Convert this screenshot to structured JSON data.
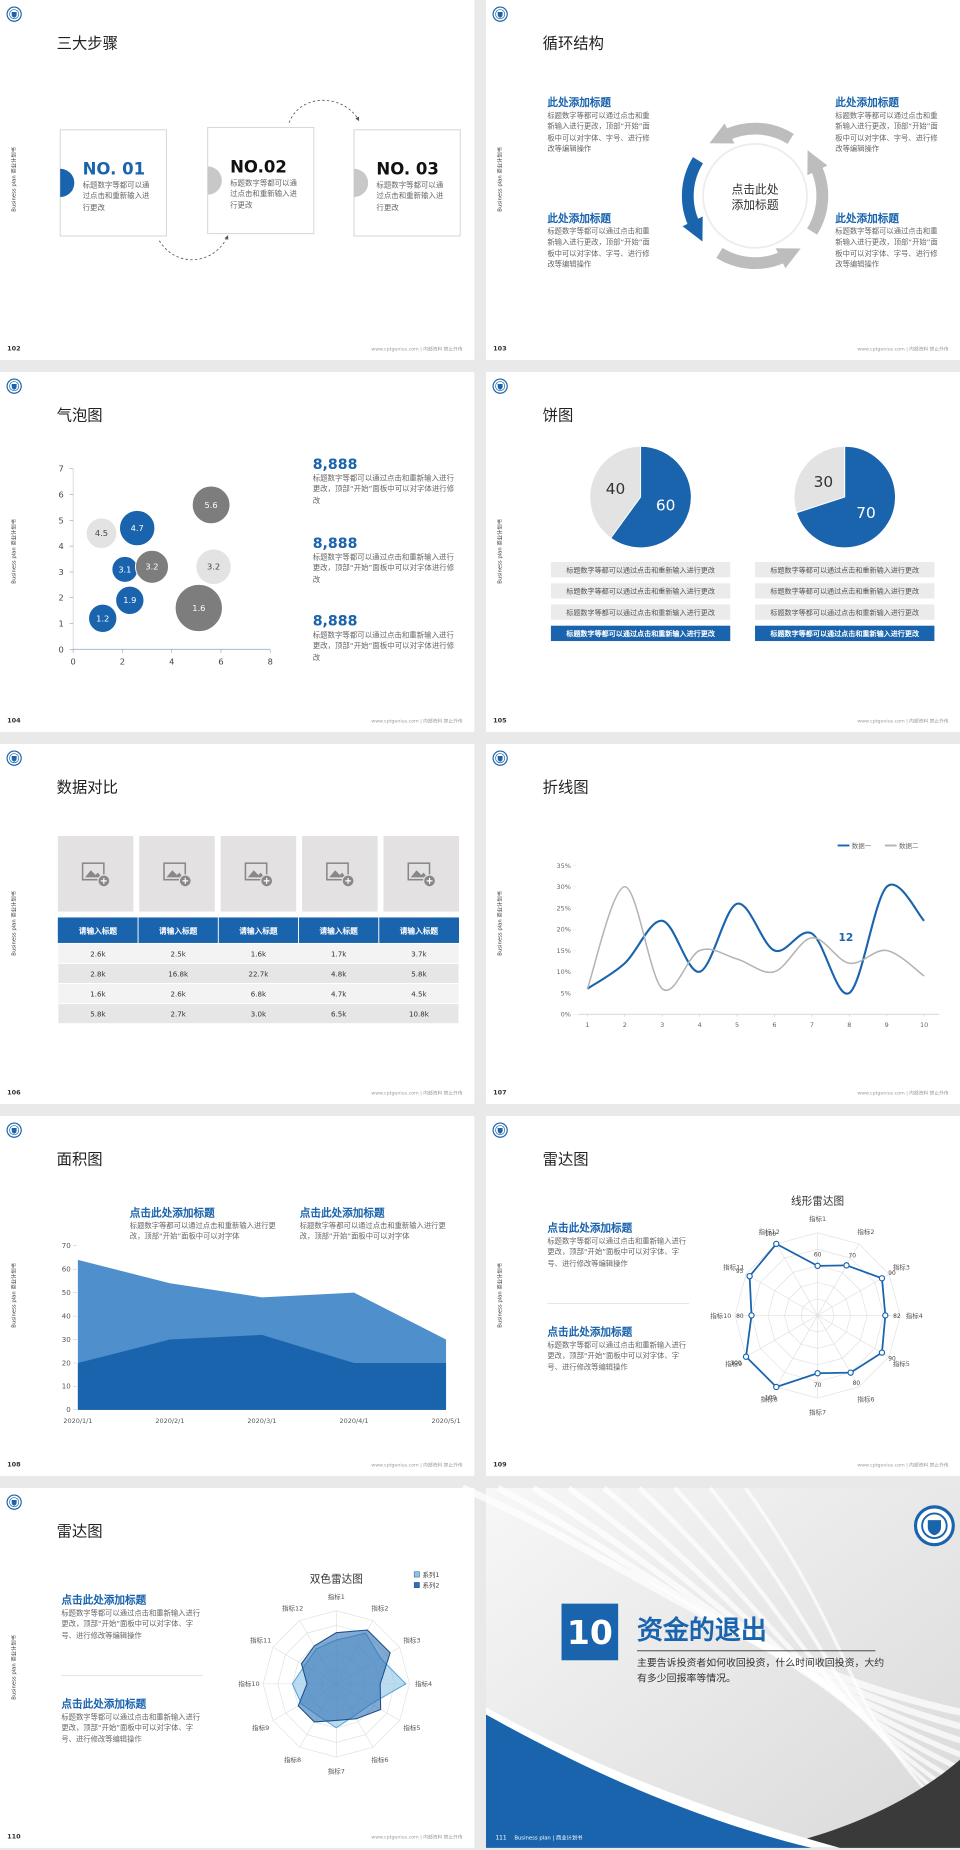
{
  "side_label": "Business plan 商业计划书",
  "footer": "www.cptgenius.com | 内部资料 禁止外传",
  "slides": [
    {
      "page": "102",
      "title": "三大步骤",
      "steps": [
        {
          "label": "NO. 01",
          "text": "标题数字等都可以通过点击和重新输入进行更改"
        },
        {
          "label": "NO.02",
          "text": "标题数字等都可以通过点击和重新输入进行更改"
        },
        {
          "label": "NO. 03",
          "text": "标题数字等都可以通过点击和重新输入进行更改"
        }
      ]
    },
    {
      "page": "103",
      "title": "循环结构",
      "center": [
        "点击此处",
        "添加标题"
      ],
      "blocks": [
        {
          "title": "此处添加标题",
          "text": "标题数字等都可以通过点击和重新输入进行更改，顶部“开始”面板中可以对字体、字号、进行修改等编辑操作"
        },
        {
          "title": "此处添加标题",
          "text": "标题数字等都可以通过点击和重新输入进行更改，顶部“开始”面板中可以对字体、字号、进行修改等编辑操作"
        },
        {
          "title": "此处添加标题",
          "text": "标题数字等都可以通过点击和重新输入进行更改，顶部“开始”面板中可以对字体、字号、进行修改等编辑操作"
        },
        {
          "title": "此处添加标题",
          "text": "标题数字等都可以通过点击和重新输入进行更改，顶部“开始”面板中可以对字体、字号、进行修改等编辑操作"
        }
      ]
    },
    {
      "page": "104",
      "title": "气泡图",
      "chart_data": {
        "type": "bubble",
        "x": [
          1.2,
          2.3,
          2.1,
          2.6,
          1.15,
          3.2,
          5.6,
          5.7,
          5.1
        ],
        "y": [
          1.2,
          1.9,
          3.1,
          4.7,
          4.5,
          3.2,
          5.6,
          3.2,
          1.6
        ],
        "sizes": [
          12,
          12,
          11,
          15,
          13,
          14,
          16,
          15,
          20
        ],
        "colors": [
          "#1a64ad",
          "#1a64ad",
          "#1a64ad",
          "#1a64ad",
          "#e3e3e3",
          "#7d7d7d",
          "#7d7d7d",
          "#e3e3e3",
          "#7d7d7d"
        ],
        "xlim": [
          0,
          8
        ],
        "xticks": [
          0,
          2,
          4,
          6,
          8
        ],
        "ylim": [
          0,
          7
        ],
        "yticks": [
          0,
          1,
          2,
          3,
          4,
          5,
          6,
          7
        ]
      },
      "stats": [
        {
          "value": "8,888",
          "text": "标题数字等都可以通过点击和重新输入进行更改，顶部“开始”面板中可以对字体进行修改"
        },
        {
          "value": "8,888",
          "text": "标题数字等都可以通过点击和重新输入进行更改，顶部“开始”面板中可以对字体进行修改"
        },
        {
          "value": "8,888",
          "text": "标题数字等都可以通过点击和重新输入进行更改，顶部“开始”面板中可以对字体进行修改"
        }
      ]
    },
    {
      "page": "105",
      "title": "饼图",
      "pies": [
        {
          "chart_data": {
            "type": "pie",
            "values": [
              40,
              60
            ],
            "colors": [
              "#e3e3e3",
              "#1a64ad"
            ]
          },
          "items": [
            "标题数字等都可以通过点击和重新输入进行更改",
            "标题数字等都可以通过点击和重新输入进行更改",
            "标题数字等都可以通过点击和重新输入进行更改",
            "标题数字等都可以通过点击和重新输入进行更改"
          ]
        },
        {
          "chart_data": {
            "type": "pie",
            "values": [
              30,
              70
            ],
            "colors": [
              "#e3e3e3",
              "#1a64ad"
            ]
          },
          "items": [
            "标题数字等都可以通过点击和重新输入进行更改",
            "标题数字等都可以通过点击和重新输入进行更改",
            "标题数字等都可以通过点击和重新输入进行更改",
            "标题数字等都可以通过点击和重新输入进行更改"
          ]
        }
      ]
    },
    {
      "page": "106",
      "title": "数据对比",
      "table": {
        "header": [
          "请输入标题",
          "请输入标题",
          "请输入标题",
          "请输入标题",
          "请输入标题"
        ],
        "rows": [
          [
            "2.6k",
            "2.5k",
            "1.6k",
            "1.7k",
            "3.7k"
          ],
          [
            "2.8k",
            "16.8k",
            "22.7k",
            "4.8k",
            "5.8k"
          ],
          [
            "1.6k",
            "2.6k",
            "6.8k",
            "4.7k",
            "4.5k"
          ],
          [
            "5.8k",
            "2.7k",
            "3.0k",
            "6.5k",
            "10.8k"
          ]
        ]
      }
    },
    {
      "page": "107",
      "title": "折线图",
      "chart_data": {
        "type": "line",
        "x": [
          1,
          2,
          3,
          4,
          5,
          6,
          7,
          8,
          9,
          10
        ],
        "series": [
          {
            "name": "数据一",
            "color": "#1a64ad",
            "values": [
              6,
              12,
              22,
              10,
              26,
              15,
              19,
              5,
              30,
              22
            ]
          },
          {
            "name": "数据二",
            "color": "#b4b4b4",
            "values": [
              6,
              30,
              6,
              15,
              13,
              10,
              18,
              12,
              15,
              9
            ]
          }
        ],
        "annotation": "12",
        "xlim": [
          0.75,
          10.4
        ],
        "xticks": [
          1,
          2,
          3,
          4,
          5,
          6,
          7,
          8,
          9,
          10
        ],
        "ylim": [
          0,
          35
        ],
        "yticks": [
          {
            "value": 0,
            "label": "0%"
          },
          {
            "value": 5,
            "label": "5%"
          },
          {
            "value": 10,
            "label": "10%"
          },
          {
            "value": 15,
            "label": "15%"
          },
          {
            "value": 20,
            "label": "20%"
          },
          {
            "value": 25,
            "label": "25%"
          },
          {
            "value": 30,
            "label": "30%"
          },
          {
            "value": 35,
            "label": "35%"
          }
        ]
      }
    },
    {
      "page": "108",
      "title": "面积图",
      "chart_data": {
        "type": "area",
        "categories": [
          "2020/1/1",
          "2020/2/1",
          "2020/3/1",
          "2020/4/1",
          "2020/5/1"
        ],
        "series": [
          {
            "color": "#4f8fcc",
            "values": [
              64,
              54,
              48,
              50,
              30
            ]
          },
          {
            "color": "#1a64ad",
            "values": [
              20,
              30,
              32,
              20,
              20
            ]
          }
        ],
        "ylim": [
          0,
          70
        ],
        "yticks": [
          0,
          10,
          20,
          30,
          40,
          50,
          60,
          70
        ]
      },
      "blocks": [
        {
          "title": "点击此处添加标题",
          "text": "标题数字等都可以通过点击和重新输入进行更改，顶部“开始”面板中可以对字体"
        },
        {
          "title": "点击此处添加标题",
          "text": "标题数字等都可以通过点击和重新输入进行更改，顶部“开始”面板中可以对字体"
        }
      ]
    },
    {
      "page": "109",
      "title": "雷达图",
      "chart_data": {
        "type": "radar",
        "title": "线形雷达图",
        "categories": [
          "指标1",
          "指标2",
          "指标3",
          "指标4",
          "指标5",
          "指标6",
          "指标7",
          "指标8",
          "指标9",
          "指标10",
          "指标11",
          "指标12"
        ],
        "series": [
          {
            "color": "#1a64ad",
            "values": [
              60,
              70,
              90,
              82,
              90,
              80,
              70,
              100,
              100,
              80,
              95,
              100
            ]
          }
        ],
        "rlim": [
          0,
          100
        ],
        "rticks": [
          20,
          40,
          60,
          80,
          100
        ]
      },
      "blocks": [
        {
          "title": "点击此处添加标题",
          "text": "标题数字等都可以通过点击和重新输入进行更改，顶部“开始”面板中可以对字体、字号、进行修改等编辑操作"
        },
        {
          "title": "点击此处添加标题",
          "text": "标题数字等都可以通过点击和重新输入进行更改，顶部“开始”面板中可以对字体、字号、进行修改等编辑操作"
        }
      ]
    },
    {
      "page": "110",
      "title": "雷达图",
      "chart_data": {
        "type": "radar-filled",
        "title": "双色雷达图",
        "categories": [
          "指标1",
          "指标2",
          "指标3",
          "指标4",
          "指标5",
          "指标6",
          "指标7",
          "指标8",
          "指标9",
          "指标10",
          "指标11",
          "指标12"
        ],
        "series": [
          {
            "name": "系列1",
            "color": "#8ec3e6",
            "values": [
              60,
              80,
              70,
              95,
              55,
              50,
              60,
              50,
              55,
              60,
              50,
              55
            ]
          },
          {
            "name": "系列2",
            "color": "#2f6fb3",
            "values": [
              70,
              85,
              85,
              60,
              70,
              55,
              50,
              60,
              60,
              40,
              55,
              60
            ]
          }
        ],
        "rlim": [
          0,
          100
        ],
        "rticks": [
          20,
          40,
          60,
          80,
          100
        ]
      },
      "blocks": [
        {
          "title": "点击此处添加标题",
          "text": "标题数字等都可以通过点击和重新输入进行更改，顶部“开始”面板中可以对字体、字号、进行修改等编辑操作"
        },
        {
          "title": "点击此处添加标题",
          "text": "标题数字等都可以通过点击和重新输入进行更改，顶部“开始”面板中可以对字体、字号、进行修改等编辑操作"
        }
      ]
    },
    {
      "page": "111",
      "cover": true,
      "number": "10",
      "title": "资金的退出",
      "text": "主要告诉投资者如何收回投资，什么时间收回投资，大约有多少回报率等情况。",
      "footer_text": "Business plan | 商业计划书"
    }
  ]
}
